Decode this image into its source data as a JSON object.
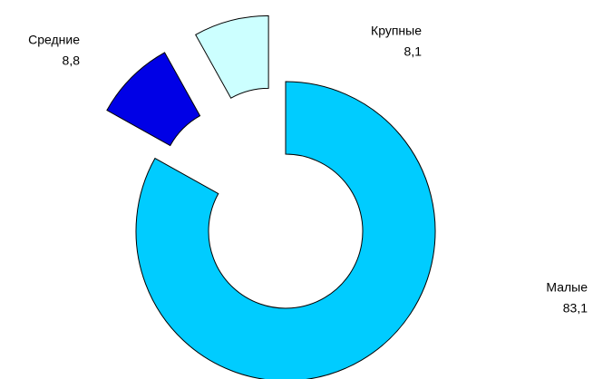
{
  "chart_data": {
    "type": "donut",
    "categories": [
      "Малые",
      "Средние",
      "Крупные"
    ],
    "values": [
      83.1,
      8.8,
      8.1
    ],
    "value_labels": [
      "83,1",
      "8,8",
      "8,1"
    ],
    "colors": [
      "#00ccff",
      "#0000e6",
      "#ccffff"
    ],
    "exploded": [
      false,
      true,
      true
    ]
  }
}
